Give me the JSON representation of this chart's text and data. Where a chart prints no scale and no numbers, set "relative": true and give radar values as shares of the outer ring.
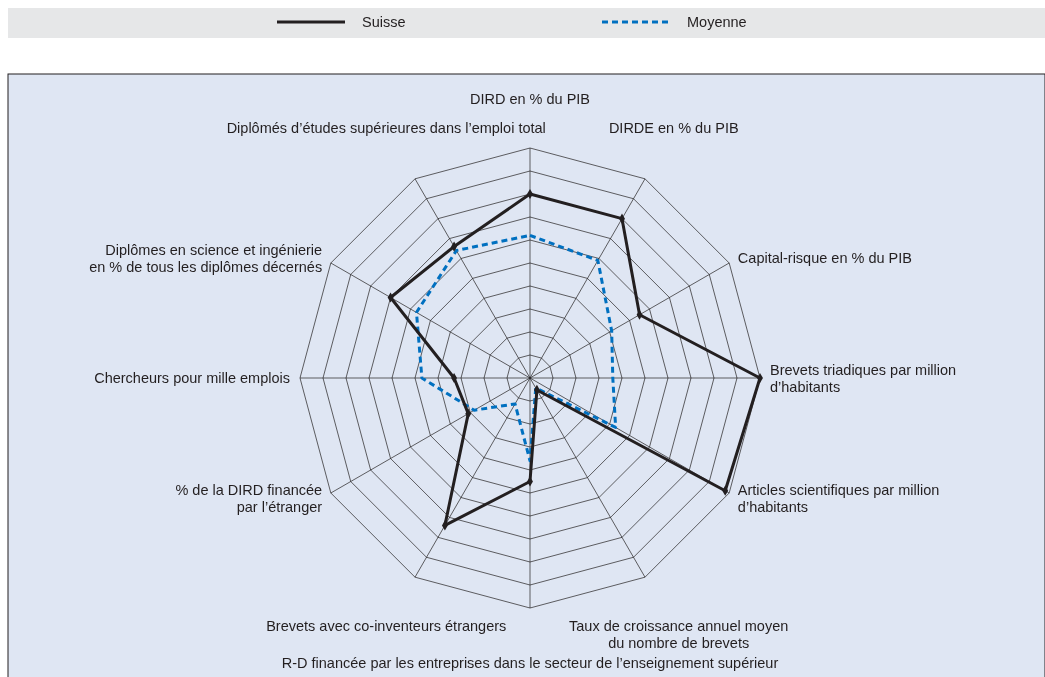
{
  "chart_data": {
    "type": "radar",
    "relative": true,
    "grid": true,
    "legend": "top",
    "categories": [
      "DIRD en % du PIB",
      "DIRDE en % du PIB",
      "Capital-risque en % du PIB",
      "Brevets triadiques par million\nd’habitants",
      "Articles scientifiques par million\nd’habitants",
      "Taux de croissance annuel moyen\ndu nombre de brevets",
      "R-D financée par les entreprises dans le secteur de l’enseignement supérieur",
      "Brevets avec co-inventeurs étrangers",
      "% de la DIRD financée\npar l’étranger",
      "Chercheurs pour mille emplois",
      "Diplômes en science et ingénierie\nen % de tous les diplômes décernés",
      "Diplômés d’études supérieures dans l’emploi total"
    ],
    "series": [
      {
        "name": "Suisse",
        "color": "#231f20",
        "line_style": "solid",
        "marker": "diamond",
        "values": [
          0.8,
          0.8,
          0.55,
          1.0,
          0.98,
          0.06,
          0.45,
          0.74,
          0.31,
          0.33,
          0.7,
          0.66
        ]
      },
      {
        "name": "Moyenne",
        "color": "#0070c0",
        "line_style": "dashed",
        "marker": "none",
        "values": [
          0.62,
          0.59,
          0.41,
          0.36,
          0.43,
          0.05,
          0.36,
          0.13,
          0.28,
          0.47,
          0.57,
          0.64
        ]
      }
    ]
  }
}
